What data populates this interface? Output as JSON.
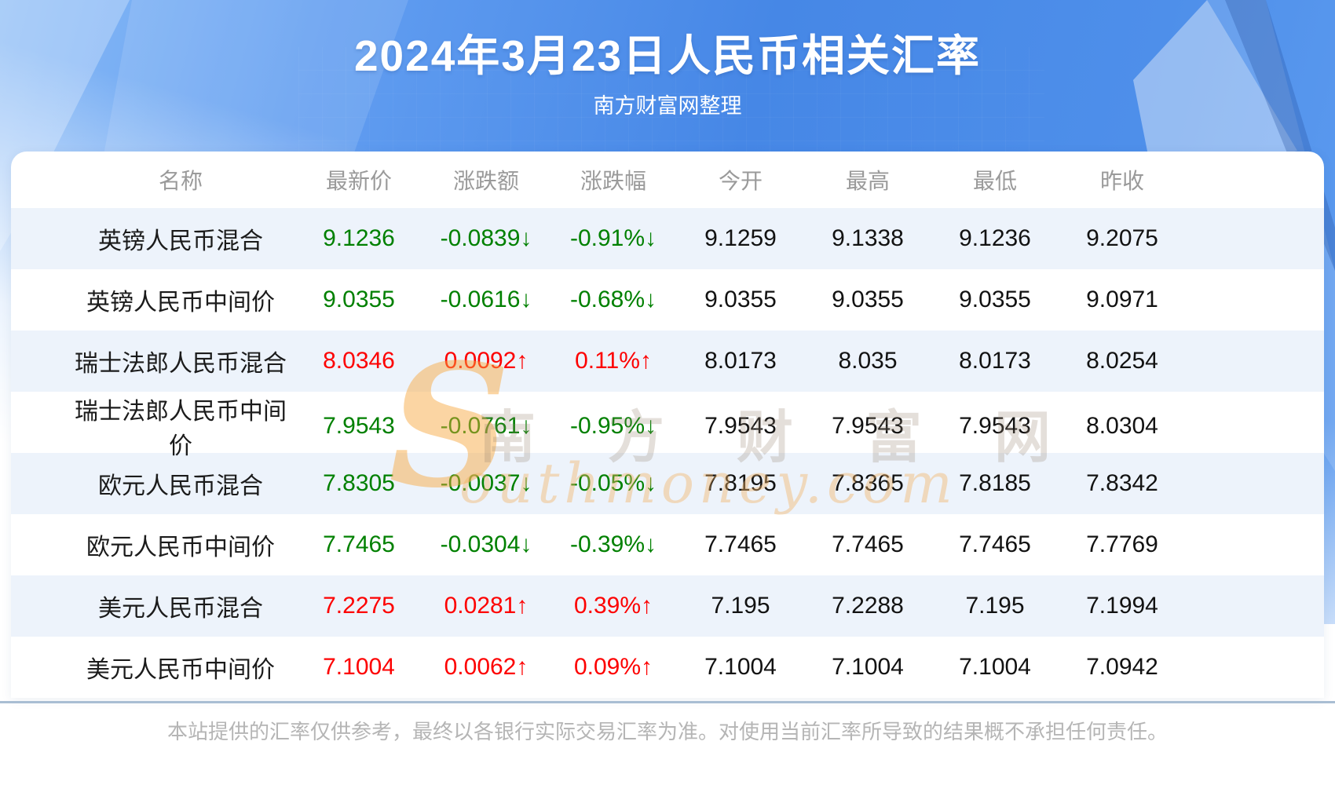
{
  "header": {
    "title": "2024年3月23日人民币相关汇率",
    "subtitle": "南方财富网整理"
  },
  "table": {
    "columns": {
      "name": "名称",
      "latest": "最新价",
      "change": "涨跌额",
      "change_pct": "涨跌幅",
      "open": "今开",
      "high": "最高",
      "low": "最低",
      "prev_close": "昨收"
    },
    "rows": [
      {
        "name": "英镑人民币混合",
        "latest": "9.1236",
        "change": "-0.0839↓",
        "change_pct": "-0.91%↓",
        "open": "9.1259",
        "high": "9.1338",
        "low": "9.1236",
        "prev_close": "9.2075",
        "direction": "down"
      },
      {
        "name": "英镑人民币中间价",
        "latest": "9.0355",
        "change": "-0.0616↓",
        "change_pct": "-0.68%↓",
        "open": "9.0355",
        "high": "9.0355",
        "low": "9.0355",
        "prev_close": "9.0971",
        "direction": "down"
      },
      {
        "name": "瑞士法郎人民币混合",
        "latest": "8.0346",
        "change": "0.0092↑",
        "change_pct": "0.11%↑",
        "open": "8.0173",
        "high": "8.035",
        "low": "8.0173",
        "prev_close": "8.0254",
        "direction": "up"
      },
      {
        "name": "瑞士法郎人民币中间价",
        "latest": "7.9543",
        "change": "-0.0761↓",
        "change_pct": "-0.95%↓",
        "open": "7.9543",
        "high": "7.9543",
        "low": "7.9543",
        "prev_close": "8.0304",
        "direction": "down"
      },
      {
        "name": "欧元人民币混合",
        "latest": "7.8305",
        "change": "-0.0037↓",
        "change_pct": "-0.05%↓",
        "open": "7.8195",
        "high": "7.8365",
        "low": "7.8185",
        "prev_close": "7.8342",
        "direction": "down"
      },
      {
        "name": "欧元人民币中间价",
        "latest": "7.7465",
        "change": "-0.0304↓",
        "change_pct": "-0.39%↓",
        "open": "7.7465",
        "high": "7.7465",
        "low": "7.7465",
        "prev_close": "7.7769",
        "direction": "down"
      },
      {
        "name": "美元人民币混合",
        "latest": "7.2275",
        "change": "0.0281↑",
        "change_pct": "0.39%↑",
        "open": "7.195",
        "high": "7.2288",
        "low": "7.195",
        "prev_close": "7.1994",
        "direction": "up"
      },
      {
        "name": "美元人民币中间价",
        "latest": "7.1004",
        "change": "0.0062↑",
        "change_pct": "0.09%↑",
        "open": "7.1004",
        "high": "7.1004",
        "low": "7.1004",
        "prev_close": "7.0942",
        "direction": "up"
      }
    ]
  },
  "watermark": {
    "initial": "S",
    "cn_text": "南 方 财 富 网",
    "en_text": "outhmoney.com"
  },
  "footer": {
    "disclaimer": "本站提供的汇率仅供参考，最终以各银行实际交易汇率为准。对使用当前汇率所导致的结果概不承担任何责任。"
  },
  "colors": {
    "up_red": "#fd0000",
    "down_green": "#008000",
    "row_alt_blue": "#edf3fb",
    "hero_blue": "#4687e6",
    "header_gray": "#9a9a9a"
  },
  "chart_data": {
    "type": "table",
    "title": "2024年3月23日人民币相关汇率",
    "subtitle": "南方财富网整理",
    "columns": [
      "名称",
      "最新价",
      "涨跌额",
      "涨跌幅",
      "今开",
      "最高",
      "最低",
      "昨收"
    ],
    "rows": [
      [
        "英镑人民币混合",
        "9.1236",
        "-0.0839↓",
        "-0.91%↓",
        "9.1259",
        "9.1338",
        "9.1236",
        "9.2075"
      ],
      [
        "英镑人民币中间价",
        "9.0355",
        "-0.0616↓",
        "-0.68%↓",
        "9.0355",
        "9.0355",
        "9.0355",
        "9.0971"
      ],
      [
        "瑞士法郎人民币混合",
        "8.0346",
        "0.0092↑",
        "0.11%↑",
        "8.0173",
        "8.035",
        "8.0173",
        "8.0254"
      ],
      [
        "瑞士法郎人民币中间价",
        "7.9543",
        "-0.0761↓",
        "-0.95%↓",
        "7.9543",
        "7.9543",
        "7.9543",
        "8.0304"
      ],
      [
        "欧元人民币混合",
        "7.8305",
        "-0.0037↓",
        "-0.05%↓",
        "7.8195",
        "7.8365",
        "7.8185",
        "7.8342"
      ],
      [
        "欧元人民币中间价",
        "7.7465",
        "-0.0304↓",
        "-0.39%↓",
        "7.7465",
        "7.7465",
        "7.7465",
        "7.7769"
      ],
      [
        "美元人民币混合",
        "7.2275",
        "0.0281↑",
        "0.39%↑",
        "7.195",
        "7.2288",
        "7.195",
        "7.1994"
      ],
      [
        "美元人民币中间价",
        "7.1004",
        "0.0062↑",
        "0.09%↑",
        "7.1004",
        "7.1004",
        "7.1004",
        "7.0942"
      ]
    ],
    "row_directions": [
      "down",
      "down",
      "up",
      "down",
      "down",
      "down",
      "up",
      "up"
    ]
  }
}
